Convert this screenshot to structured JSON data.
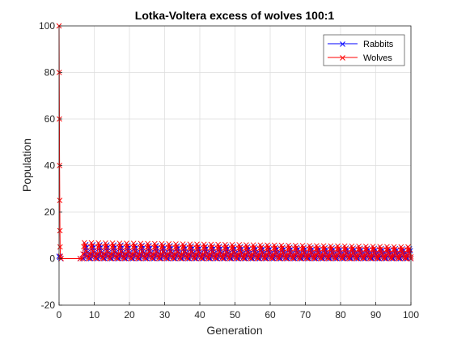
{
  "chart_data": {
    "type": "line",
    "title": "Lotka-Voltera excess of wolves 100:1",
    "xlabel": "Generation",
    "ylabel": "Population",
    "xlim": [
      0,
      100
    ],
    "ylim": [
      -20,
      100
    ],
    "xticks": [
      "0",
      "10",
      "20",
      "30",
      "40",
      "50",
      "60",
      "70",
      "80",
      "90",
      "100"
    ],
    "yticks": [
      "-20",
      "0",
      "20",
      "40",
      "60",
      "80",
      "100"
    ],
    "grid": true,
    "legend_position": "top-right",
    "marker": "x",
    "series": [
      {
        "name": "Rabbits",
        "color": "#0000ff",
        "initial": 1,
        "startup": [
          [
            0.0,
            1.0
          ],
          [
            0.2,
            0.5
          ],
          [
            0.5,
            0.0
          ],
          [
            6.0,
            0.0
          ]
        ],
        "cycle_start": 7.0,
        "cycle_end": 100,
        "cycle_period": 2.0,
        "peak_start": 6.0,
        "peak_end": 4.2,
        "trough": 0.0
      },
      {
        "name": "Wolves",
        "color": "#ff0000",
        "initial": 100,
        "startup": [
          [
            0.0,
            100.0
          ],
          [
            0.05,
            80.0
          ],
          [
            0.1,
            60.0
          ],
          [
            0.15,
            40.0
          ],
          [
            0.2,
            25.0
          ],
          [
            0.25,
            12.0
          ],
          [
            0.3,
            5.0
          ],
          [
            0.4,
            1.0
          ],
          [
            0.6,
            0.0
          ],
          [
            6.0,
            0.0
          ]
        ],
        "cycle_start": 6.6,
        "cycle_end": 100,
        "cycle_period": 2.0,
        "peak_start": 6.8,
        "peak_end": 5.0,
        "trough": 0.0
      }
    ]
  }
}
